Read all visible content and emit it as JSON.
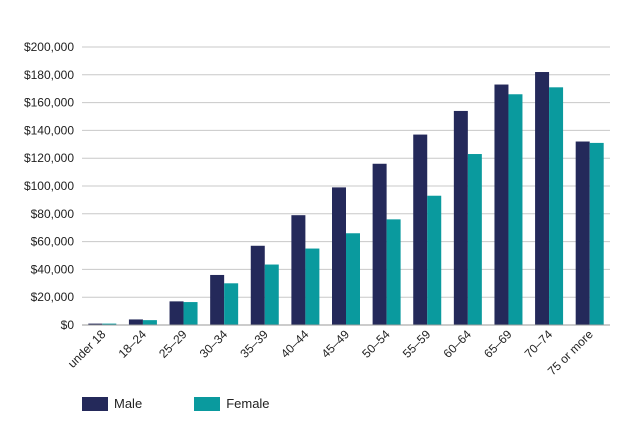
{
  "chart_data": {
    "type": "bar",
    "categories": [
      "under 18",
      "18–24",
      "25–29",
      "30–34",
      "35–39",
      "40–44",
      "45–49",
      "50–54",
      "55–59",
      "60–64",
      "65–69",
      "70–74",
      "75 or more"
    ],
    "series": [
      {
        "name": "Male",
        "color": "#24295a",
        "values": [
          1000,
          4000,
          17000,
          36000,
          57000,
          79000,
          99000,
          116000,
          137000,
          154000,
          173000,
          182000,
          132000
        ]
      },
      {
        "name": "Female",
        "color": "#0a9a9e",
        "values": [
          1000,
          3500,
          16500,
          30000,
          43500,
          55000,
          66000,
          76000,
          93000,
          123000,
          166000,
          171000,
          131000
        ]
      }
    ],
    "ylim": [
      0,
      200000
    ],
    "yticks": [
      0,
      20000,
      40000,
      60000,
      80000,
      100000,
      120000,
      140000,
      160000,
      180000,
      200000
    ],
    "ytick_labels": [
      "$0",
      "$20,000",
      "$40,000",
      "$60,000",
      "$80,000",
      "$100,000",
      "$120,000",
      "$140,000",
      "$160,000",
      "$180,000",
      "$200,000"
    ],
    "grid": true,
    "legend_position": "bottom-left"
  },
  "legend": {
    "male_label": "Male",
    "female_label": "Female",
    "male_color": "#24295a",
    "female_color": "#0a9a9e"
  }
}
